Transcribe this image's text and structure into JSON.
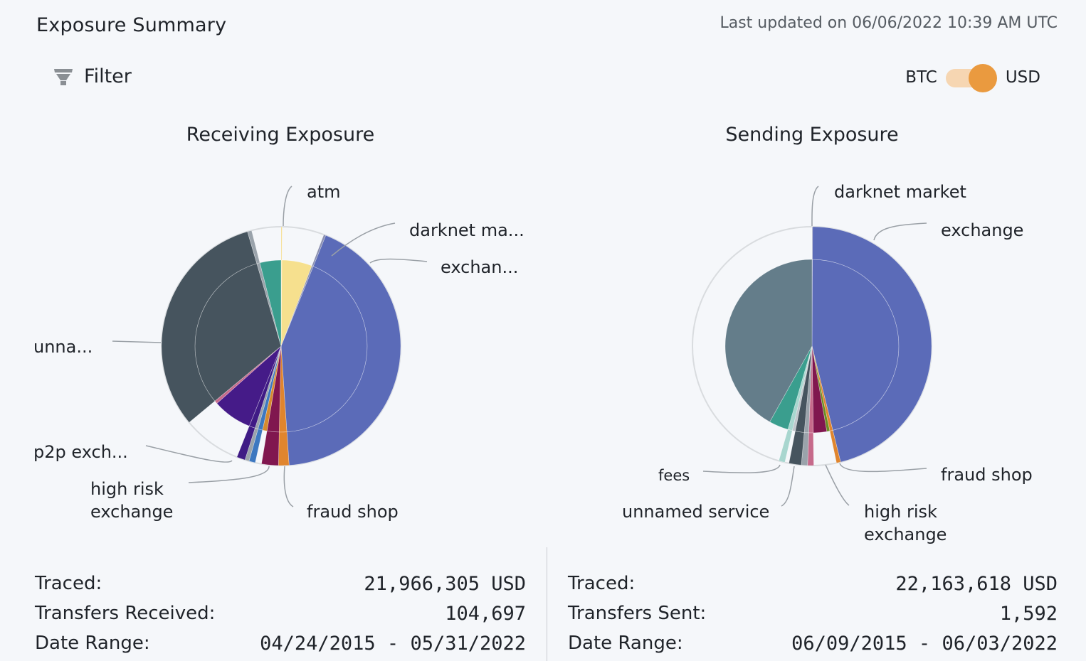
{
  "header": {
    "title": "Exposure Summary",
    "last_updated": "Last updated on 06/06/2022 10:39 AM UTC"
  },
  "filter": {
    "label": "Filter",
    "icon": "filter-icon"
  },
  "currency_toggle": {
    "left_label": "BTC",
    "right_label": "USD",
    "selected": "USD",
    "accent": "#ea9a3f"
  },
  "receiving": {
    "title": "Receiving Exposure",
    "labels": {
      "atm": "atm",
      "darknet": "darknet ma...",
      "exchange": "exchan...",
      "unnamed": "unna...",
      "p2p": "p2p exch...",
      "high_risk_1": "high risk",
      "high_risk_2": "exchange",
      "fraud": "fraud shop"
    },
    "stats": {
      "traced_label": "Traced:",
      "traced_value": "21,966,305 USD",
      "transfers_label": "Transfers Received:",
      "transfers_value": "104,697",
      "date_label": "Date Range:",
      "date_value": "04/24/2015 - 05/31/2022"
    }
  },
  "sending": {
    "title": "Sending Exposure",
    "labels": {
      "darknet": "darknet market",
      "exchange": "exchange",
      "fraud": "fraud shop",
      "fees": "fees",
      "unnamed": "unnamed service",
      "high_risk_1": "high risk",
      "high_risk_2": "exchange"
    },
    "stats": {
      "traced_label": "Traced:",
      "traced_value": "22,163,618 USD",
      "transfers_label": "Transfers Sent:",
      "transfers_value": "1,592",
      "date_label": "Date Range:",
      "date_value": "06/09/2015 - 06/03/2022"
    }
  },
  "chart_data": [
    {
      "type": "pie",
      "title": "Receiving Exposure",
      "note": "values are approximate share of total (degrees of arc read from image)",
      "slices": [
        {
          "name": "atm",
          "value": 0.5,
          "color": "#f4dc8c",
          "outer": 0.5
        },
        {
          "name": "",
          "value": 20,
          "color": "#f6e08e",
          "outer": 0
        },
        {
          "name": "darknet ma...",
          "value": 1,
          "color": "#8a8fb0",
          "outer": 0.3
        },
        {
          "name": "exchan...",
          "value": 151,
          "color": "#5b6bb8",
          "outer": 12
        },
        {
          "name": "fraud shop",
          "value": 5,
          "color": "#e0852e",
          "outer": 5
        },
        {
          "name": "",
          "value": 8,
          "color": "#80174f",
          "outer": 8
        },
        {
          "name": "",
          "value": 3,
          "color": "#d68a2e",
          "outer": 0
        },
        {
          "name": "",
          "value": 3,
          "color": "#3d78c0",
          "outer": 3
        },
        {
          "name": "high risk exchange",
          "value": 2,
          "color": "#9aa3ab",
          "outer": 2
        },
        {
          "name": "p2p exch...",
          "value": 4,
          "color": "#3f1b85",
          "outer": 4
        },
        {
          "name": "",
          "value": 26,
          "color": "#451b88",
          "outer": 0
        },
        {
          "name": "",
          "value": 2,
          "color": "#c66a8b",
          "outer": 0
        },
        {
          "name": "unna...",
          "value": 111,
          "color": "#46545e",
          "outer": 68
        },
        {
          "name": "",
          "value": 2,
          "color": "#9aa3ab",
          "outer": 2
        },
        {
          "name": "",
          "value": 14,
          "color": "#3a9e8e",
          "outer": 0
        }
      ]
    },
    {
      "type": "pie",
      "title": "Sending Exposure",
      "note": "values are approximate share of total (degrees of arc read from image)",
      "slices": [
        {
          "name": "darknet market",
          "value": 0.3,
          "color": "#8a8fb0",
          "outer": 0.3
        },
        {
          "name": "exchange",
          "value": 166,
          "color": "#5b6bb8",
          "outer": 56
        },
        {
          "name": "fraud shop",
          "value": 2,
          "color": "#e0852e",
          "outer": 2
        },
        {
          "name": "",
          "value": 2,
          "color": "#6b8e23",
          "outer": 0
        },
        {
          "name": "high risk exchange",
          "value": 9,
          "color": "#80174f",
          "outer": 0
        },
        {
          "name": "",
          "value": 3,
          "color": "#c66a8b",
          "outer": 3
        },
        {
          "name": "",
          "value": 3,
          "color": "#9aa3ab",
          "outer": 3
        },
        {
          "name": "unnamed service",
          "value": 6,
          "color": "#46545e",
          "outer": 6
        },
        {
          "name": "",
          "value": 2,
          "color": "#bfc5cb",
          "outer": 0
        },
        {
          "name": "fees",
          "value": 3,
          "color": "#a8d6cf",
          "outer": 3
        },
        {
          "name": "",
          "value": 13,
          "color": "#3a9e8e",
          "outer": 0
        },
        {
          "name": "",
          "value": 151,
          "color": "#647d8a",
          "outer": 0
        }
      ]
    }
  ]
}
